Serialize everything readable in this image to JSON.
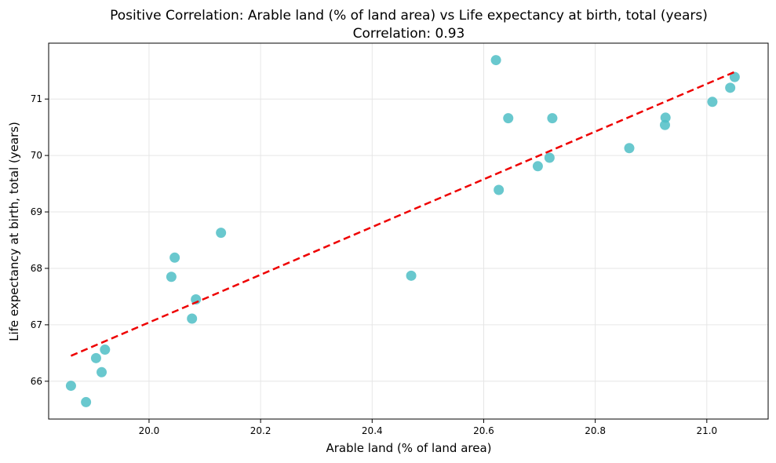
{
  "chart_data": {
    "type": "scatter",
    "title": "Positive Correlation: Arable land (% of land area) vs Life expectancy at birth, total (years)",
    "subtitle": "Correlation: 0.93",
    "xlabel": "Arable land (% of land area)",
    "ylabel": "Life expectancy at birth, total (years)",
    "xlim": [
      19.82,
      21.11
    ],
    "ylim": [
      65.33,
      71.99
    ],
    "xticks": [
      20.0,
      20.2,
      20.4,
      20.6,
      20.8,
      21.0
    ],
    "xtick_labels": [
      "20.0",
      "20.2",
      "20.4",
      "20.6",
      "20.8",
      "21.0"
    ],
    "yticks": [
      66,
      67,
      68,
      69,
      70,
      71
    ],
    "ytick_labels": [
      "66",
      "67",
      "68",
      "69",
      "70",
      "71"
    ],
    "grid": true,
    "points": [
      {
        "x": 19.86,
        "y": 65.92
      },
      {
        "x": 19.887,
        "y": 65.63
      },
      {
        "x": 19.905,
        "y": 66.41
      },
      {
        "x": 19.915,
        "y": 66.16
      },
      {
        "x": 19.921,
        "y": 66.56
      },
      {
        "x": 20.04,
        "y": 67.85
      },
      {
        "x": 20.046,
        "y": 68.19
      },
      {
        "x": 20.077,
        "y": 67.11
      },
      {
        "x": 20.084,
        "y": 67.45
      },
      {
        "x": 20.129,
        "y": 68.63
      },
      {
        "x": 20.47,
        "y": 67.87
      },
      {
        "x": 20.622,
        "y": 71.69
      },
      {
        "x": 20.627,
        "y": 69.39
      },
      {
        "x": 20.644,
        "y": 70.66
      },
      {
        "x": 20.697,
        "y": 69.81
      },
      {
        "x": 20.718,
        "y": 69.96
      },
      {
        "x": 20.723,
        "y": 70.66
      },
      {
        "x": 20.861,
        "y": 70.13
      },
      {
        "x": 20.925,
        "y": 70.54
      },
      {
        "x": 20.926,
        "y": 70.67
      },
      {
        "x": 21.01,
        "y": 70.95
      },
      {
        "x": 21.042,
        "y": 71.2
      },
      {
        "x": 21.05,
        "y": 71.39
      }
    ],
    "trendline": {
      "x": [
        19.86,
        21.05
      ],
      "y": [
        66.45,
        71.48
      ]
    },
    "colors": {
      "points": "#4fbec6",
      "trendline": "#ee0000",
      "grid": "#e6e6e6"
    }
  }
}
